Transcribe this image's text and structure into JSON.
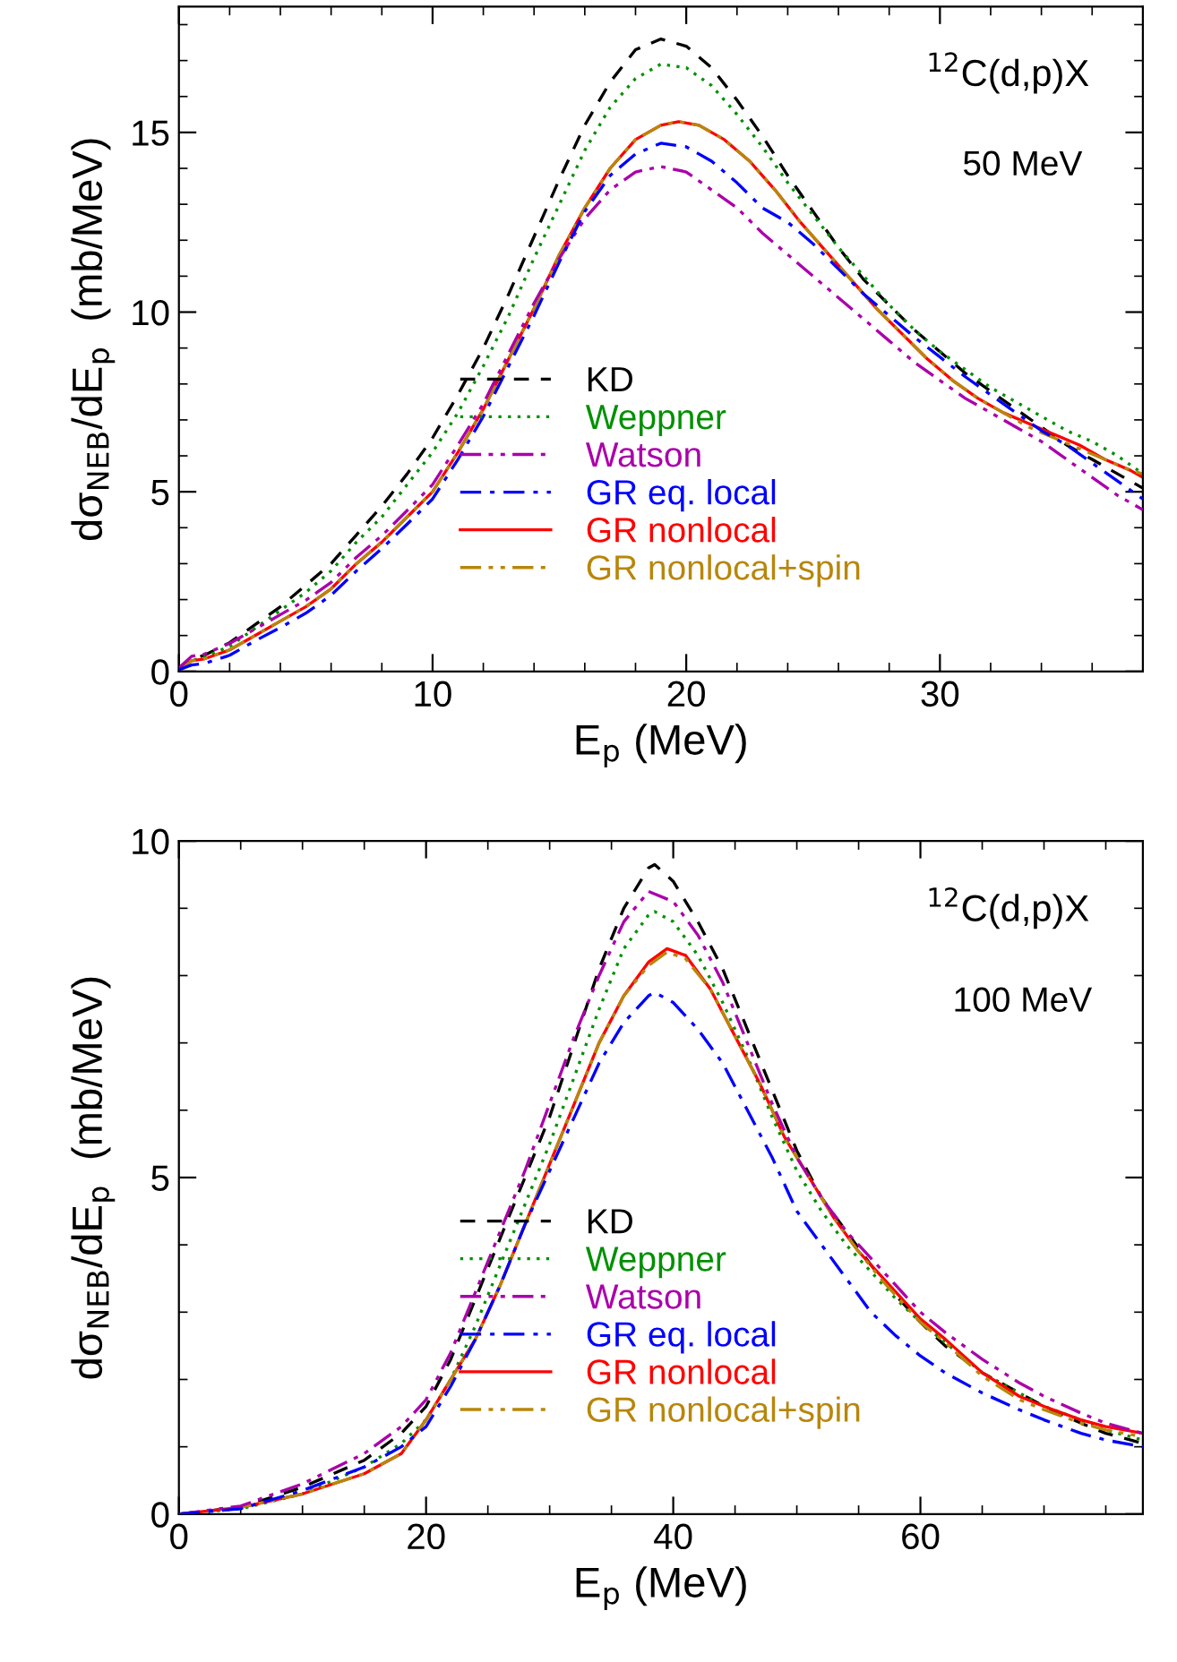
{
  "chart_data": [
    {
      "type": "line",
      "xlabel": "E$_{p}$ (MeV)",
      "ylabel": "dσ$_{NEB}$/dE$_{p}$  (mb/MeV)",
      "annotations": [
        "$^{12}$C(d,p)X",
        "50 MeV"
      ],
      "xlim": [
        0,
        38
      ],
      "ylim": [
        0,
        18.5
      ],
      "xticks": [
        0,
        10,
        20,
        30
      ],
      "yticks": [
        0,
        5,
        10,
        15
      ],
      "legend": "bottom",
      "grid": false,
      "series": [
        {
          "name": "KD",
          "color": "#000000",
          "line_style": "dashed",
          "x": [
            0,
            0.5,
            1,
            2,
            3,
            4,
            5,
            6,
            7,
            8,
            9,
            10,
            11,
            12,
            13,
            14,
            15,
            16,
            17,
            18,
            19,
            20,
            21,
            22,
            23,
            24,
            25,
            26,
            27,
            28,
            29,
            30,
            31,
            32,
            33,
            34,
            35,
            36,
            37,
            38
          ],
          "values": [
            0,
            0.35,
            0.45,
            0.8,
            1.3,
            1.8,
            2.4,
            3.0,
            3.8,
            4.6,
            5.5,
            6.5,
            7.7,
            9.0,
            10.5,
            12.1,
            13.7,
            15.2,
            16.4,
            17.3,
            17.6,
            17.4,
            16.8,
            15.9,
            14.9,
            13.8,
            12.8,
            11.8,
            10.9,
            10.2,
            9.5,
            8.9,
            8.3,
            7.8,
            7.3,
            6.8,
            6.3,
            5.9,
            5.5,
            5.1
          ]
        },
        {
          "name": "Weppner",
          "color": "#009000",
          "line_style": "dotted",
          "x": [
            0,
            0.5,
            1,
            2,
            3,
            4,
            5,
            6,
            7,
            8,
            9,
            10,
            11,
            12,
            13,
            14,
            15,
            16,
            17,
            18,
            19,
            20,
            21,
            22,
            23,
            24,
            25,
            26,
            27,
            28,
            29,
            30,
            31,
            32,
            33,
            34,
            35,
            36,
            37,
            38
          ],
          "values": [
            0,
            0.3,
            0.4,
            0.7,
            1.2,
            1.7,
            2.2,
            2.8,
            3.6,
            4.3,
            5.2,
            6.1,
            7.2,
            8.5,
            9.9,
            11.5,
            13.0,
            14.5,
            15.7,
            16.5,
            16.9,
            16.8,
            16.3,
            15.5,
            14.6,
            13.6,
            12.7,
            11.8,
            11.0,
            10.2,
            9.5,
            8.9,
            8.4,
            7.9,
            7.5,
            7.1,
            6.7,
            6.4,
            6.0,
            5.5
          ]
        },
        {
          "name": "Watson",
          "color": "#aa00aa",
          "line_style": "dashdotdot",
          "x": [
            0,
            0.5,
            1,
            2,
            3,
            4,
            5,
            6,
            7,
            8,
            9,
            10,
            11,
            12,
            13,
            14,
            15,
            16,
            17,
            18,
            19,
            20,
            21,
            22,
            23,
            24,
            25,
            26,
            27,
            28,
            29,
            30,
            31,
            32,
            33,
            34,
            35,
            36,
            37,
            38
          ],
          "values": [
            0.1,
            0.42,
            0.48,
            0.78,
            1.18,
            1.58,
            1.98,
            2.48,
            3.18,
            3.78,
            4.48,
            5.2,
            6.3,
            7.45,
            8.85,
            10.25,
            11.5,
            12.6,
            13.4,
            13.9,
            14.05,
            13.9,
            13.4,
            12.9,
            12.2,
            11.6,
            11.0,
            10.4,
            9.8,
            9.2,
            8.6,
            8.1,
            7.6,
            7.2,
            6.8,
            6.4,
            5.9,
            5.4,
            4.9,
            4.5
          ]
        },
        {
          "name": "GR eq. local",
          "color": "#0000ff",
          "line_style": "dashdot",
          "x": [
            0,
            0.5,
            1,
            2,
            3,
            4,
            5,
            6,
            7,
            8,
            9,
            10,
            11,
            12,
            13,
            14,
            15,
            16,
            17,
            18,
            19,
            20,
            21,
            22,
            23,
            24,
            25,
            26,
            27,
            28,
            29,
            30,
            31,
            32,
            33,
            34,
            35,
            36,
            37,
            38
          ],
          "values": [
            0.05,
            0.18,
            0.22,
            0.45,
            0.85,
            1.22,
            1.62,
            2.12,
            2.8,
            3.42,
            4.1,
            4.8,
            5.9,
            7.1,
            8.5,
            9.9,
            11.4,
            12.8,
            13.8,
            14.4,
            14.7,
            14.6,
            14.2,
            13.6,
            12.9,
            12.5,
            11.9,
            11.2,
            10.5,
            9.9,
            9.3,
            8.75,
            8.2,
            7.7,
            7.2,
            6.7,
            6.3,
            5.8,
            5.3,
            4.8
          ]
        },
        {
          "name": "GR nonlocal",
          "color": "#ff0000",
          "line_style": "solid",
          "x": [
            0,
            0.5,
            1,
            2,
            3,
            4,
            5,
            6,
            7,
            8,
            9,
            10,
            11,
            12,
            13,
            14,
            15,
            16,
            17,
            18,
            19,
            19.7,
            20.5,
            21.5,
            22.5,
            23.5,
            24.5,
            25.5,
            26.5,
            27.5,
            28.5,
            29.5,
            30.5,
            31.5,
            32.5,
            33.5,
            34.5,
            35.5,
            36.5,
            37.5,
            38
          ],
          "values": [
            0,
            0.3,
            0.35,
            0.6,
            1.0,
            1.4,
            1.8,
            2.3,
            3.0,
            3.6,
            4.3,
            5.0,
            6.1,
            7.3,
            8.7,
            10.1,
            11.6,
            12.9,
            14.0,
            14.8,
            15.2,
            15.3,
            15.2,
            14.8,
            14.2,
            13.4,
            12.5,
            11.7,
            10.9,
            10.1,
            9.4,
            8.7,
            8.1,
            7.6,
            7.2,
            6.9,
            6.6,
            6.3,
            5.9,
            5.6,
            5.4
          ]
        },
        {
          "name": "GR nonlocal+spin",
          "color": "#b8860b",
          "line_style": "dashdotdot",
          "x": [
            0,
            0.5,
            1,
            2,
            3,
            4,
            5,
            6,
            7,
            8,
            9,
            10,
            11,
            12,
            13,
            14,
            15,
            16,
            17,
            18,
            19,
            19.7,
            20.5,
            21.5,
            22.5,
            23.5,
            24.5,
            25.5,
            26.5,
            27.5,
            28.5,
            29.5,
            30.5,
            31.5,
            32.5,
            33.5,
            34.5,
            35.5,
            36.5,
            37.5,
            38
          ],
          "values": [
            0,
            0.3,
            0.35,
            0.6,
            1.0,
            1.4,
            1.8,
            2.3,
            3.0,
            3.6,
            4.3,
            5.0,
            6.1,
            7.3,
            8.7,
            10.1,
            11.6,
            12.9,
            14.0,
            14.8,
            15.2,
            15.3,
            15.2,
            14.8,
            14.2,
            13.4,
            12.5,
            11.7,
            10.9,
            10.1,
            9.4,
            8.7,
            8.1,
            7.6,
            7.2,
            6.8,
            6.5,
            6.2,
            5.9,
            5.6,
            5.5
          ]
        }
      ]
    },
    {
      "type": "line",
      "xlabel": "E$_{p}$ (MeV)",
      "ylabel": "dσ$_{NEB}$/dE$_{p}$  (mb/MeV)",
      "annotations": [
        "$^{12}$C(d,p)X",
        "100 MeV"
      ],
      "xlim": [
        0,
        78
      ],
      "ylim": [
        0,
        10
      ],
      "xticks": [
        0,
        20,
        40,
        60
      ],
      "yticks": [
        0,
        5,
        10
      ],
      "legend": "bottom",
      "grid": false,
      "series": [
        {
          "name": "KD",
          "color": "#000000",
          "line_style": "dashed",
          "x": [
            0,
            5,
            10,
            15,
            18,
            20,
            22,
            24,
            26,
            28,
            30,
            32,
            34,
            36,
            38,
            38.5,
            40,
            42,
            44,
            46,
            48,
            50,
            52,
            54,
            56,
            58,
            60,
            62,
            65,
            68,
            70,
            73,
            75,
            78
          ],
          "values": [
            0,
            0.1,
            0.4,
            0.8,
            1.2,
            1.6,
            2.3,
            3.2,
            4.1,
            5.0,
            5.9,
            7.0,
            8.1,
            9.0,
            9.6,
            9.65,
            9.4,
            8.8,
            8.1,
            7.2,
            6.3,
            5.4,
            4.7,
            4.2,
            3.7,
            3.25,
            2.85,
            2.5,
            2.1,
            1.8,
            1.6,
            1.35,
            1.2,
            1.05
          ]
        },
        {
          "name": "Weppner",
          "color": "#009000",
          "line_style": "dotted",
          "x": [
            0,
            5,
            10,
            15,
            18,
            20,
            22,
            24,
            26,
            28,
            30,
            32,
            34,
            36,
            38,
            38.5,
            40,
            42,
            44,
            46,
            48,
            50,
            52,
            54,
            56,
            58,
            60,
            62,
            65,
            68,
            70,
            73,
            75,
            78
          ],
          "values": [
            0,
            0.08,
            0.3,
            0.7,
            1.05,
            1.4,
            2.0,
            2.8,
            3.7,
            4.6,
            5.5,
            6.5,
            7.5,
            8.4,
            8.9,
            8.95,
            8.8,
            8.3,
            7.6,
            6.8,
            5.9,
            5.1,
            4.5,
            4.0,
            3.6,
            3.2,
            2.85,
            2.55,
            2.1,
            1.8,
            1.6,
            1.4,
            1.25,
            1.1
          ]
        },
        {
          "name": "Watson",
          "color": "#aa00aa",
          "line_style": "dashdotdot",
          "x": [
            0,
            5,
            10,
            15,
            18,
            20,
            22,
            24,
            26,
            28,
            30,
            32,
            34,
            36,
            38,
            40,
            42,
            44,
            46,
            48,
            50,
            52,
            54,
            56,
            58,
            60,
            62,
            65,
            68,
            70,
            73,
            75,
            78
          ],
          "values": [
            0,
            0.12,
            0.45,
            0.9,
            1.3,
            1.7,
            2.4,
            3.3,
            4.2,
            5.1,
            6.1,
            7.1,
            8.0,
            8.8,
            9.25,
            9.1,
            8.6,
            7.9,
            7.0,
            6.1,
            5.3,
            4.7,
            4.2,
            3.8,
            3.4,
            3.0,
            2.7,
            2.3,
            1.95,
            1.75,
            1.5,
            1.35,
            1.2
          ]
        },
        {
          "name": "GR eq. local",
          "color": "#0000ff",
          "line_style": "dashdot",
          "x": [
            0,
            5,
            10,
            15,
            18,
            20,
            22,
            24,
            26,
            28,
            30,
            32,
            34,
            36,
            38,
            38.5,
            40,
            42,
            44,
            46,
            48,
            50,
            52,
            54,
            56,
            58,
            60,
            62,
            65,
            68,
            70,
            73,
            75,
            78
          ],
          "values": [
            0,
            0.08,
            0.35,
            0.7,
            1.0,
            1.3,
            1.9,
            2.6,
            3.4,
            4.3,
            5.1,
            5.9,
            6.7,
            7.3,
            7.7,
            7.75,
            7.6,
            7.2,
            6.7,
            6.0,
            5.3,
            4.5,
            4.0,
            3.5,
            3.0,
            2.65,
            2.35,
            2.1,
            1.8,
            1.55,
            1.4,
            1.2,
            1.1,
            1.0
          ]
        },
        {
          "name": "GR nonlocal",
          "color": "#ff0000",
          "line_style": "solid",
          "x": [
            0,
            5,
            10,
            15,
            18,
            20,
            22,
            24,
            26,
            28,
            30,
            32,
            34,
            36,
            38,
            39.5,
            41,
            43,
            45,
            47,
            49,
            51,
            53,
            55,
            57,
            60,
            62,
            65,
            68,
            70,
            73,
            75,
            78
          ],
          "values": [
            0,
            0.1,
            0.3,
            0.6,
            0.9,
            1.4,
            2.0,
            2.6,
            3.4,
            4.3,
            5.2,
            6.1,
            7.0,
            7.7,
            8.2,
            8.4,
            8.3,
            7.8,
            7.1,
            6.4,
            5.6,
            5.0,
            4.4,
            3.9,
            3.5,
            2.9,
            2.6,
            2.1,
            1.75,
            1.6,
            1.4,
            1.3,
            1.2
          ]
        },
        {
          "name": "GR nonlocal+spin",
          "color": "#b8860b",
          "line_style": "dashdotdot",
          "x": [
            0,
            5,
            10,
            15,
            18,
            20,
            22,
            24,
            26,
            28,
            30,
            32,
            34,
            36,
            38,
            39.5,
            41,
            43,
            45,
            47,
            49,
            51,
            53,
            55,
            57,
            60,
            62,
            65,
            68,
            70,
            73,
            75,
            78
          ],
          "values": [
            0,
            0.1,
            0.3,
            0.6,
            0.9,
            1.4,
            2.0,
            2.6,
            3.4,
            4.3,
            5.2,
            6.1,
            7.0,
            7.7,
            8.15,
            8.35,
            8.25,
            7.8,
            7.1,
            6.4,
            5.6,
            5.0,
            4.4,
            3.9,
            3.45,
            2.85,
            2.55,
            2.05,
            1.7,
            1.55,
            1.35,
            1.25,
            1.15
          ]
        }
      ]
    }
  ]
}
